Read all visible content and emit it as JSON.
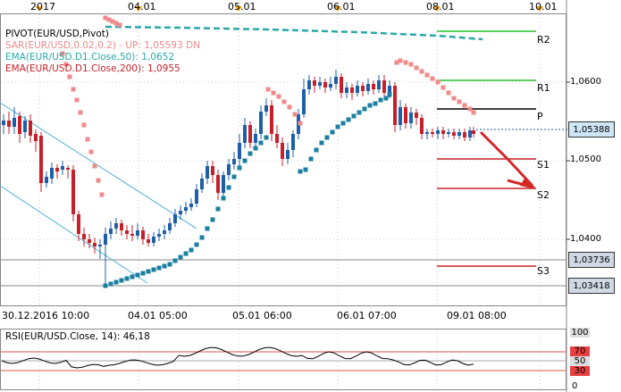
{
  "top_axis": {
    "labels": [
      {
        "text": "2017",
        "x": 44
      },
      {
        "text": "04.01",
        "x": 155
      },
      {
        "text": "05.01",
        "x": 267
      },
      {
        "text": "06.01",
        "x": 378
      },
      {
        "text": "08.01",
        "x": 489
      },
      {
        "text": "10.01",
        "x": 604
      }
    ],
    "markers_x": [
      44,
      155,
      267,
      378,
      489,
      604
    ]
  },
  "legend": {
    "line1": "PIVOT(EUR/USD,Pivot)",
    "line2": "SAR(EUR/USD,0.02,0.2)  -  UP: 1,05593  DN",
    "line3": "EMA(EUR/USD.D1.Close,50): 1,0652",
    "line4": "EMA(EUR/USD.D1.Close,200): 1,0955"
  },
  "pivot_labels": {
    "r2": "R2",
    "r1": "R1",
    "p": "P",
    "s1": "S1",
    "s2": "S2",
    "s3": "S3"
  },
  "price_axis": {
    "ticks": [
      "1,0600",
      "1,0500",
      "1,0400"
    ],
    "current": "1,05388",
    "level1": "1,03736",
    "level2": "1,03418"
  },
  "bottom_axis": {
    "labels": [
      "30.12.2016 10:00",
      "04.01 05:00",
      "05.01 06:00",
      "06.01 07:00",
      "09.01 08:00"
    ]
  },
  "rsi": {
    "title": "RSI(EUR/USD.Close, 14): 46,18",
    "levels": [
      "100",
      "70",
      "50",
      "30",
      "0"
    ]
  },
  "colors": {
    "bull": "#1f5fa8",
    "bear": "#c8202a",
    "sar": "#f08a8a",
    "ema": "#2aa8a8",
    "pivot_green": "#22c02a",
    "pivot_red": "#c8202a",
    "arrow": "#d42828",
    "marker": "#f0a000"
  }
}
